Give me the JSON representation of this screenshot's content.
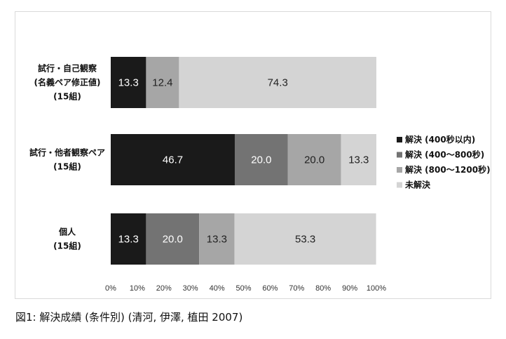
{
  "caption": "図1: 解決成績 (条件別) (清河, 伊澤, 植田 2007)",
  "chart_data": {
    "type": "bar",
    "orientation": "horizontal",
    "stacked": true,
    "percent": true,
    "categories": [
      [
        "試行・自己観察",
        "(名義ペア修正値)",
        "(15組)"
      ],
      [
        "試行・他者観察ペア",
        "(15組)"
      ],
      [
        "個人",
        "(15組)"
      ]
    ],
    "series": [
      {
        "name": "解決 (400秒以内)",
        "color": "#1a1a1a",
        "label_color": "#ffffff",
        "values": [
          13.3,
          46.7,
          13.3
        ]
      },
      {
        "name": "解決 (400〜800秒)",
        "color": "#737373",
        "label_color": "#ffffff",
        "values": [
          0,
          20.0,
          20.0
        ]
      },
      {
        "name": "解決 (800〜1200秒)",
        "color": "#a6a6a6",
        "label_color": "#222222",
        "values": [
          12.4,
          20.0,
          13.3
        ]
      },
      {
        "name": "未解決",
        "color": "#d4d4d4",
        "label_color": "#222222",
        "values": [
          74.3,
          13.3,
          53.3
        ]
      }
    ],
    "data_labels": [
      [
        "13.3",
        "",
        "12.4",
        "74.3"
      ],
      [
        "46.7",
        "20.0",
        "20.0",
        "13.3"
      ],
      [
        "13.3",
        "20.0",
        "13.3",
        "53.3"
      ]
    ],
    "xlim": [
      0,
      100
    ],
    "xticks": [
      "0%",
      "10%",
      "20%",
      "30%",
      "40%",
      "50%",
      "60%",
      "70%",
      "80%",
      "90%",
      "100%"
    ],
    "grid": false,
    "legend_position": "right"
  }
}
